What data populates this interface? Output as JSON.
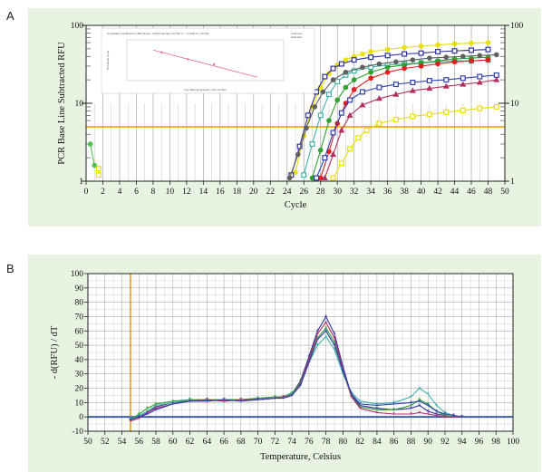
{
  "panels": {
    "a": "A",
    "b": "B"
  },
  "chart_data": [
    {
      "type": "line",
      "yscale": "log",
      "xlabel": "Cycle",
      "ylabel": "PCR Base Line Subtracted RFU",
      "xlim": [
        0,
        50
      ],
      "ylim": [
        1,
        100
      ],
      "xticks": [
        0,
        2,
        4,
        6,
        8,
        10,
        12,
        14,
        16,
        18,
        20,
        22,
        24,
        26,
        28,
        30,
        32,
        34,
        36,
        38,
        40,
        42,
        44,
        46,
        48,
        50
      ],
      "yticks": [
        1,
        10,
        100
      ],
      "threshold": 5,
      "threshold_color": "#f0a000",
      "grid": true,
      "series": [
        {
          "color": "#e8e000",
          "marker": "circle",
          "x": [
            25,
            26,
            27,
            28,
            29,
            30,
            31,
            32,
            33,
            34,
            36,
            38,
            40,
            42,
            44,
            46,
            48
          ],
          "values": [
            1.3,
            3.8,
            9,
            16,
            24,
            31,
            36,
            40,
            43,
            46,
            49,
            52,
            54,
            56,
            58,
            59,
            60
          ]
        },
        {
          "color": "#3030a0",
          "marker": "square",
          "x": [
            24.5,
            25.5,
            26.5,
            27.5,
            28.5,
            29.5,
            30.5,
            32,
            34,
            36,
            38,
            40,
            42,
            44,
            46,
            48
          ],
          "values": [
            1.2,
            2.8,
            7,
            14,
            22,
            28,
            32,
            36,
            39,
            41,
            43,
            44,
            46,
            47,
            48,
            49
          ]
        },
        {
          "color": "#40b0a8",
          "marker": "square",
          "x": [
            26,
            27,
            28,
            29,
            30,
            31,
            32,
            34,
            36,
            38,
            40,
            42,
            44,
            46,
            48
          ],
          "values": [
            1.2,
            3,
            7,
            13,
            19,
            23,
            26,
            29,
            31,
            32,
            33,
            34,
            35,
            35,
            36
          ]
        },
        {
          "color": "#30a030",
          "marker": "circle",
          "x": [
            27,
            28,
            29,
            30,
            31,
            32,
            34,
            36,
            38,
            40,
            42,
            44,
            46,
            48
          ],
          "values": [
            1.1,
            2.5,
            6,
            11,
            16,
            20,
            25,
            29,
            31,
            33,
            35,
            37,
            38,
            39
          ]
        },
        {
          "color": "#e02020",
          "marker": "circle",
          "x": [
            28,
            29,
            30,
            31,
            32,
            34,
            36,
            38,
            40,
            42,
            44,
            46,
            48
          ],
          "values": [
            1.1,
            2.4,
            5.5,
            10,
            15,
            21,
            25,
            28,
            30,
            32,
            34,
            35,
            36
          ]
        },
        {
          "color": "#3040b0",
          "marker": "square",
          "x": [
            27.5,
            28.5,
            29.5,
            30.5,
            31.5,
            33,
            35,
            37,
            39,
            41,
            43,
            45,
            47,
            49
          ],
          "values": [
            1.1,
            2,
            4.2,
            7.5,
            11,
            14,
            16,
            17.5,
            18.5,
            19.5,
            20,
            21,
            22,
            23
          ]
        },
        {
          "color": "#b03060",
          "marker": "triangle",
          "x": [
            28.5,
            29.5,
            30.5,
            31.5,
            33,
            35,
            37,
            39,
            41,
            43,
            45,
            47,
            49
          ],
          "values": [
            1.1,
            2.2,
            4.5,
            7,
            9.5,
            11.5,
            13,
            14.5,
            15.5,
            16.5,
            17.5,
            18.5,
            20
          ]
        },
        {
          "color": "#606060",
          "marker": "circle",
          "x": [
            24.3,
            25.3,
            26.3,
            27.3,
            28.3,
            29.5,
            31,
            33,
            35,
            37,
            39,
            41,
            43,
            45,
            47,
            49
          ],
          "values": [
            1.1,
            2.2,
            4.8,
            9,
            14,
            20,
            25,
            29,
            32,
            34,
            36,
            38,
            39,
            40,
            41,
            42
          ]
        },
        {
          "color": "#e8e000",
          "marker": "square",
          "x": [
            29.5,
            30.5,
            31.5,
            32.5,
            33.5,
            35,
            37,
            39,
            41,
            43,
            45,
            47,
            49
          ],
          "values": [
            1.1,
            1.7,
            2.6,
            3.6,
            4.5,
            5.5,
            6.2,
            6.8,
            7.2,
            7.7,
            8.1,
            8.6,
            9
          ]
        },
        {
          "color": "#50c050",
          "marker": "circle",
          "x": [
            0.5,
            1
          ],
          "values": [
            3,
            1.6
          ]
        },
        {
          "color": "#e8e000",
          "marker": "square",
          "x": [
            1.5,
            1.5
          ],
          "values": [
            1.45,
            1.2
          ]
        }
      ],
      "inset": {
        "type": "line",
        "title": "Correlation Coefficient: 0.993   Slope: -3.328   Intercept: 40.793   Y = -3.3281 X + 40.793",
        "xlabel": "Log Starting Quantity, copy number",
        "ylabel": "Threshold Cycle",
        "legend": [
          "Unknown",
          "Standard"
        ],
        "x": [
          2.5,
          8.5
        ],
        "values": [
          32.5,
          12.5
        ]
      }
    },
    {
      "type": "line",
      "xlabel": "Temperature, Celsius",
      "ylabel": "- d(RFU) / dT",
      "xlim": [
        50,
        100
      ],
      "ylim": [
        -10,
        100
      ],
      "xticks": [
        50,
        52,
        54,
        56,
        58,
        60,
        62,
        64,
        66,
        68,
        70,
        72,
        74,
        76,
        78,
        80,
        82,
        84,
        86,
        88,
        90,
        92,
        94,
        96,
        98,
        100
      ],
      "yticks": [
        -10,
        0,
        10,
        20,
        30,
        40,
        50,
        60,
        70,
        80,
        90,
        100
      ],
      "grid": true,
      "vline": 55,
      "vline_color": "#f0a000",
      "baseline": 0,
      "series": [
        {
          "color": "#3030a0",
          "x": [
            55,
            56,
            57,
            58,
            60,
            62,
            64,
            66,
            68,
            70,
            72,
            73,
            74,
            75,
            76,
            77,
            78,
            79,
            80,
            81,
            82,
            84,
            86,
            88,
            89,
            90,
            91,
            92,
            93,
            94
          ],
          "values": [
            -2,
            0,
            3,
            7,
            10,
            11,
            12,
            11,
            12,
            12,
            13,
            14,
            16,
            25,
            42,
            60,
            70,
            58,
            35,
            15,
            8,
            6,
            5,
            6,
            8,
            4,
            2,
            1,
            0,
            0
          ]
        },
        {
          "color": "#40b0a8",
          "x": [
            55,
            56,
            57,
            58,
            60,
            62,
            64,
            66,
            68,
            70,
            72,
            73,
            74,
            75,
            76,
            77,
            78,
            79,
            80,
            81,
            82,
            84,
            86,
            88,
            89,
            90,
            91,
            92,
            93,
            94
          ],
          "values": [
            -1,
            1,
            4,
            8,
            10,
            12,
            11,
            12,
            12,
            13,
            13,
            14,
            17,
            22,
            38,
            50,
            56,
            47,
            30,
            17,
            11,
            9,
            10,
            14,
            20,
            16,
            8,
            3,
            1,
            0
          ]
        },
        {
          "color": "#30a030",
          "x": [
            55,
            56,
            57,
            58,
            60,
            62,
            64,
            66,
            68,
            70,
            72,
            73,
            74,
            75,
            76,
            77,
            78,
            79,
            80,
            81,
            82,
            84,
            86,
            88,
            89,
            90,
            91,
            92,
            93,
            94
          ],
          "values": [
            -2,
            2,
            6,
            9,
            11,
            12,
            12,
            12,
            12,
            13,
            14,
            14,
            16,
            24,
            40,
            55,
            62,
            52,
            32,
            14,
            7,
            5,
            5,
            8,
            12,
            9,
            4,
            1,
            0,
            0
          ]
        },
        {
          "color": "#b03060",
          "x": [
            55,
            56,
            57,
            58,
            60,
            62,
            64,
            66,
            68,
            70,
            72,
            73,
            74,
            75,
            76,
            77,
            78,
            79,
            80,
            81,
            82,
            84,
            86,
            88,
            89,
            90,
            91,
            92,
            93,
            94
          ],
          "values": [
            -3,
            -1,
            3,
            6,
            9,
            11,
            12,
            11,
            12,
            12,
            13,
            14,
            15,
            23,
            40,
            58,
            66,
            55,
            33,
            14,
            6,
            3,
            2,
            2,
            3,
            2,
            1,
            0,
            0,
            0
          ]
        },
        {
          "color": "#3040b0",
          "x": [
            55,
            56,
            57,
            58,
            60,
            62,
            64,
            66,
            68,
            70,
            72,
            73,
            74,
            75,
            76,
            77,
            78,
            79,
            80,
            81,
            82,
            84,
            86,
            88,
            89,
            90,
            91,
            92,
            93,
            94
          ],
          "values": [
            -2,
            0,
            2,
            5,
            9,
            11,
            11,
            12,
            11,
            12,
            13,
            13,
            15,
            22,
            38,
            54,
            60,
            50,
            32,
            16,
            9,
            8,
            9,
            10,
            11,
            8,
            4,
            2,
            1,
            0
          ]
        }
      ]
    }
  ]
}
